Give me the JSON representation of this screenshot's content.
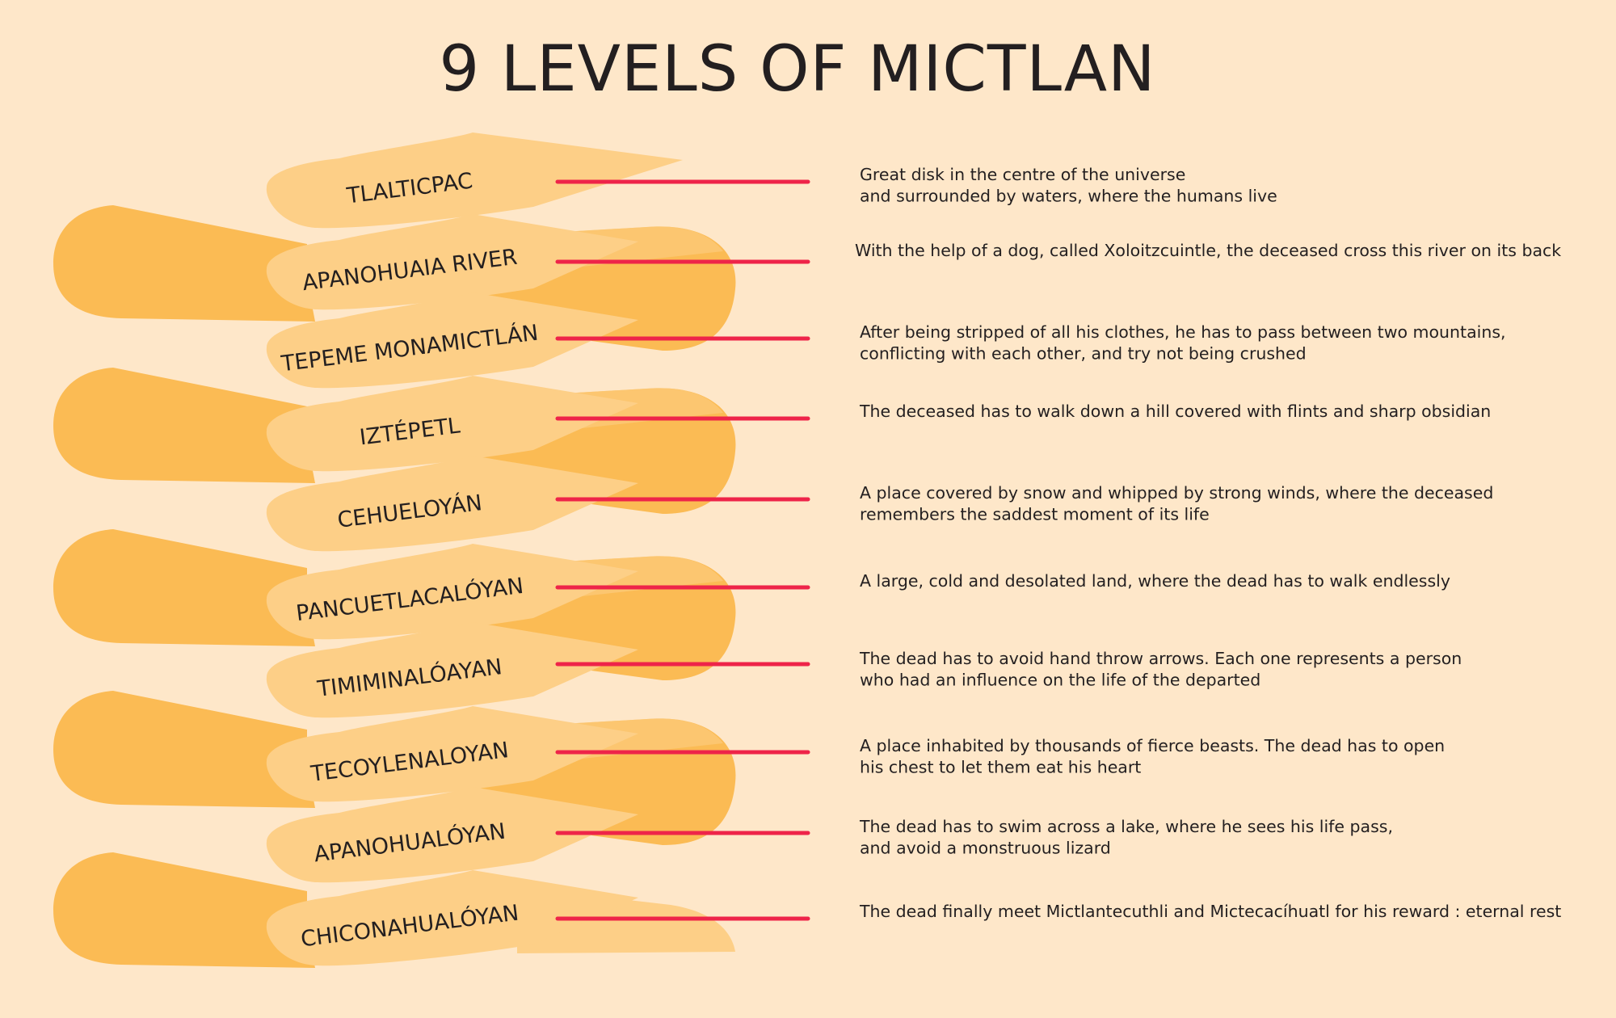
{
  "title": "9 LEVELS OF MICTLAN",
  "colors": {
    "background": "#fee7c9",
    "ribbon_dark": "#fbbb54",
    "ribbon_light": "#fdcf87",
    "connector": "#ee2449",
    "text": "#231f20"
  },
  "levels": [
    {
      "name": "TLALTICPAC",
      "description": [
        "Great disk in the centre of the universe",
        "and surrounded by waters, where the humans live"
      ]
    },
    {
      "name": "APANOHUAIA RIVER",
      "description": [
        "With the help of a dog, called Xoloitzcuintle, the deceased cross this river on its back"
      ]
    },
    {
      "name": "TEPEME MONAMICTLÁN",
      "description": [
        "After being stripped of all his clothes,  he has to pass between two mountains,",
        "conflicting with each other, and try not being crushed"
      ]
    },
    {
      "name": "IZTÉPETL",
      "description": [
        "The deceased has to walk down a hill covered with flints and sharp obsidian"
      ]
    },
    {
      "name": "CEHUELOYÁN",
      "description": [
        "A place covered by snow and whipped by strong winds, where the deceased",
        "remembers the saddest moment of its life"
      ]
    },
    {
      "name": "PANCUETLACALÓYAN",
      "description": [
        "A large, cold and desolated land, where the dead has to walk endlessly"
      ]
    },
    {
      "name": "TIMIMINALÓAYAN",
      "description": [
        " The dead has to avoid hand throw arrows. Each one represents a person",
        "who had an influence on the life of the departed"
      ]
    },
    {
      "name": "TECOYLENALOYAN",
      "description": [
        "A place inhabited by thousands of fierce beasts. The dead has to open",
        "his chest to let them eat his heart"
      ]
    },
    {
      "name": "APANOHUALÓYAN",
      "description": [
        "The dead has to swim across a lake, where he sees his life pass,",
        "and avoid a monstruous lizard"
      ]
    },
    {
      "name": "CHICONAHUALÓYAN",
      "description": [
        "The dead finally meet Mictlantecuthli and Mictecacíhuatl for his reward : eternal rest"
      ]
    }
  ]
}
